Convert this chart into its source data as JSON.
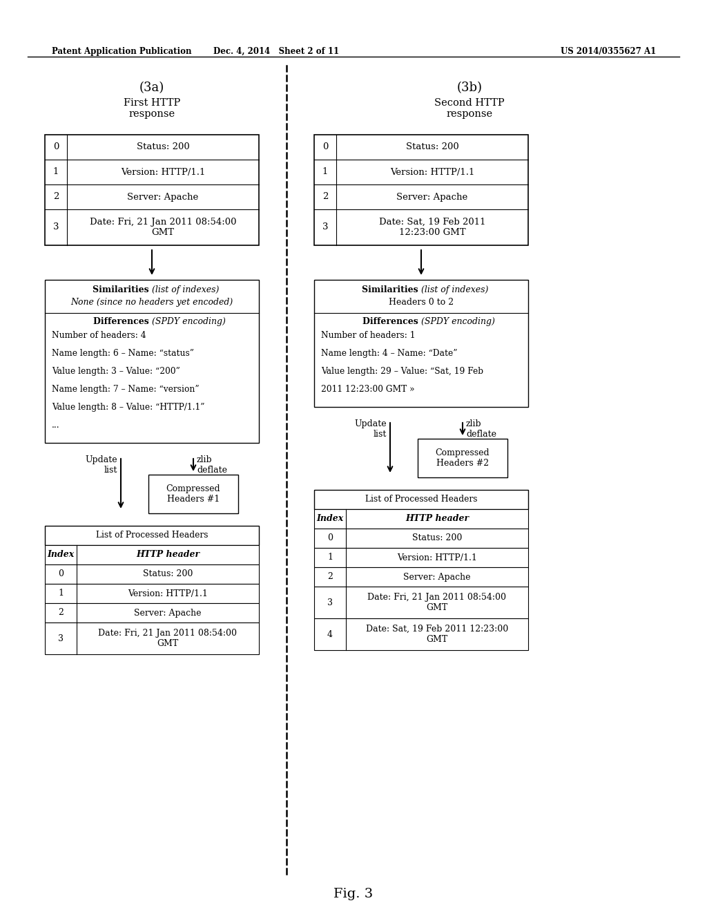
{
  "bg_color": "#ffffff",
  "header_text_left": "Patent Application Publication",
  "header_text_mid": "Dec. 4, 2014   Sheet 2 of 11",
  "header_text_right": "US 2014/0355627 A1",
  "fig_label": "Fig. 3",
  "left_title1": "(3a)",
  "left_title2": "First HTTP\nresponse",
  "right_title1": "(3b)",
  "right_title2": "Second HTTP\nresponse",
  "left_table1_rows": [
    [
      "0",
      "Status: 200"
    ],
    [
      "1",
      "Version: HTTP/1.1"
    ],
    [
      "2",
      "Server: Apache"
    ],
    [
      "3",
      "Date: Fri, 21 Jan 2011 08:54:00\nGMT"
    ]
  ],
  "right_table1_rows": [
    [
      "0",
      "Status: 200"
    ],
    [
      "1",
      "Version: HTTP/1.1"
    ],
    [
      "2",
      "Server: Apache"
    ],
    [
      "3",
      "Date: Sat, 19 Feb 2011\n12:23:00 GMT"
    ]
  ],
  "left_sim_line1_bold": "Similarities ",
  "left_sim_line1_italic": "(list of indexes)",
  "left_sim_line2": "None (since no headers yet encoded)",
  "right_sim_line1_bold": "Similarities ",
  "right_sim_line1_italic": "(list of indexes)",
  "right_sim_line2": "Headers 0 to 2",
  "left_diff_title_bold": "Differences ",
  "left_diff_title_italic": "(SPDY encoding)",
  "left_diff_lines": [
    "Number of headers: 4",
    "Name length: 6 – Name: “status”",
    "Value length: 3 – Value: “200”",
    "Name length: 7 – Name: “version”",
    "Value length: 8 – Value: “HTTP/1.1”",
    "..."
  ],
  "right_diff_title_bold": "Differences ",
  "right_diff_title_italic": "(SPDY encoding)",
  "right_diff_lines": [
    "Number of headers: 1",
    "Name length: 4 – Name: “Date”",
    "Value length: 29 – Value: “Sat, 19 Feb",
    "2011 12:23:00 GMT »"
  ],
  "left_compressed": "Compressed\nHeaders #1",
  "right_compressed": "Compressed\nHeaders #2",
  "left_update": "Update\nlist",
  "right_update": "Update\nlist",
  "left_zlib": "zlib\ndeflate",
  "right_zlib": "zlib\ndeflate",
  "left_proc_title": "List of Processed Headers",
  "right_proc_title": "List of Processed Headers",
  "proc_header": [
    "Index",
    "HTTP header"
  ],
  "left_proc_rows": [
    [
      "0",
      "Status: 200"
    ],
    [
      "1",
      "Version: HTTP/1.1"
    ],
    [
      "2",
      "Server: Apache"
    ],
    [
      "3",
      "Date: Fri, 21 Jan 2011 08:54:00\nGMT"
    ]
  ],
  "right_proc_rows": [
    [
      "0",
      "Status: 200"
    ],
    [
      "1",
      "Version: HTTP/1.1"
    ],
    [
      "2",
      "Server: Apache"
    ],
    [
      "3",
      "Date: Fri, 21 Jan 2011 08:54:00\nGMT"
    ],
    [
      "4",
      "Date: Sat, 19 Feb 2011 12:23:00\nGMT"
    ]
  ]
}
